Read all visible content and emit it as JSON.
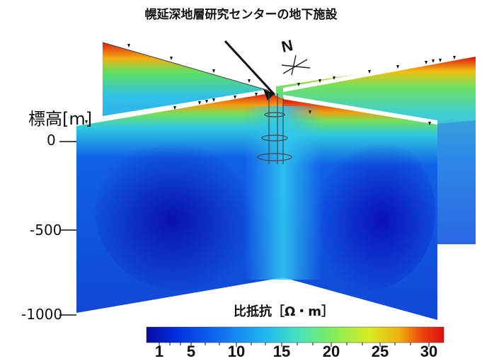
{
  "title": "幌延深地層研究センターの地下施設",
  "elevation_axis": {
    "label": "標高[m]",
    "ticks": [
      "0",
      "-500",
      "-1000"
    ]
  },
  "north_label": "N",
  "colorbar": {
    "label": "比抵抗［Ω・m］",
    "ticks": [
      "1",
      "5",
      "10",
      "15",
      "20",
      "25",
      "30"
    ],
    "colors": [
      "#0a0a9e",
      "#0030e0",
      "#1070f0",
      "#20b8f0",
      "#40e0c8",
      "#80ec60",
      "#d8ec20",
      "#f0b010",
      "#ee4010",
      "#dd1010"
    ]
  }
}
